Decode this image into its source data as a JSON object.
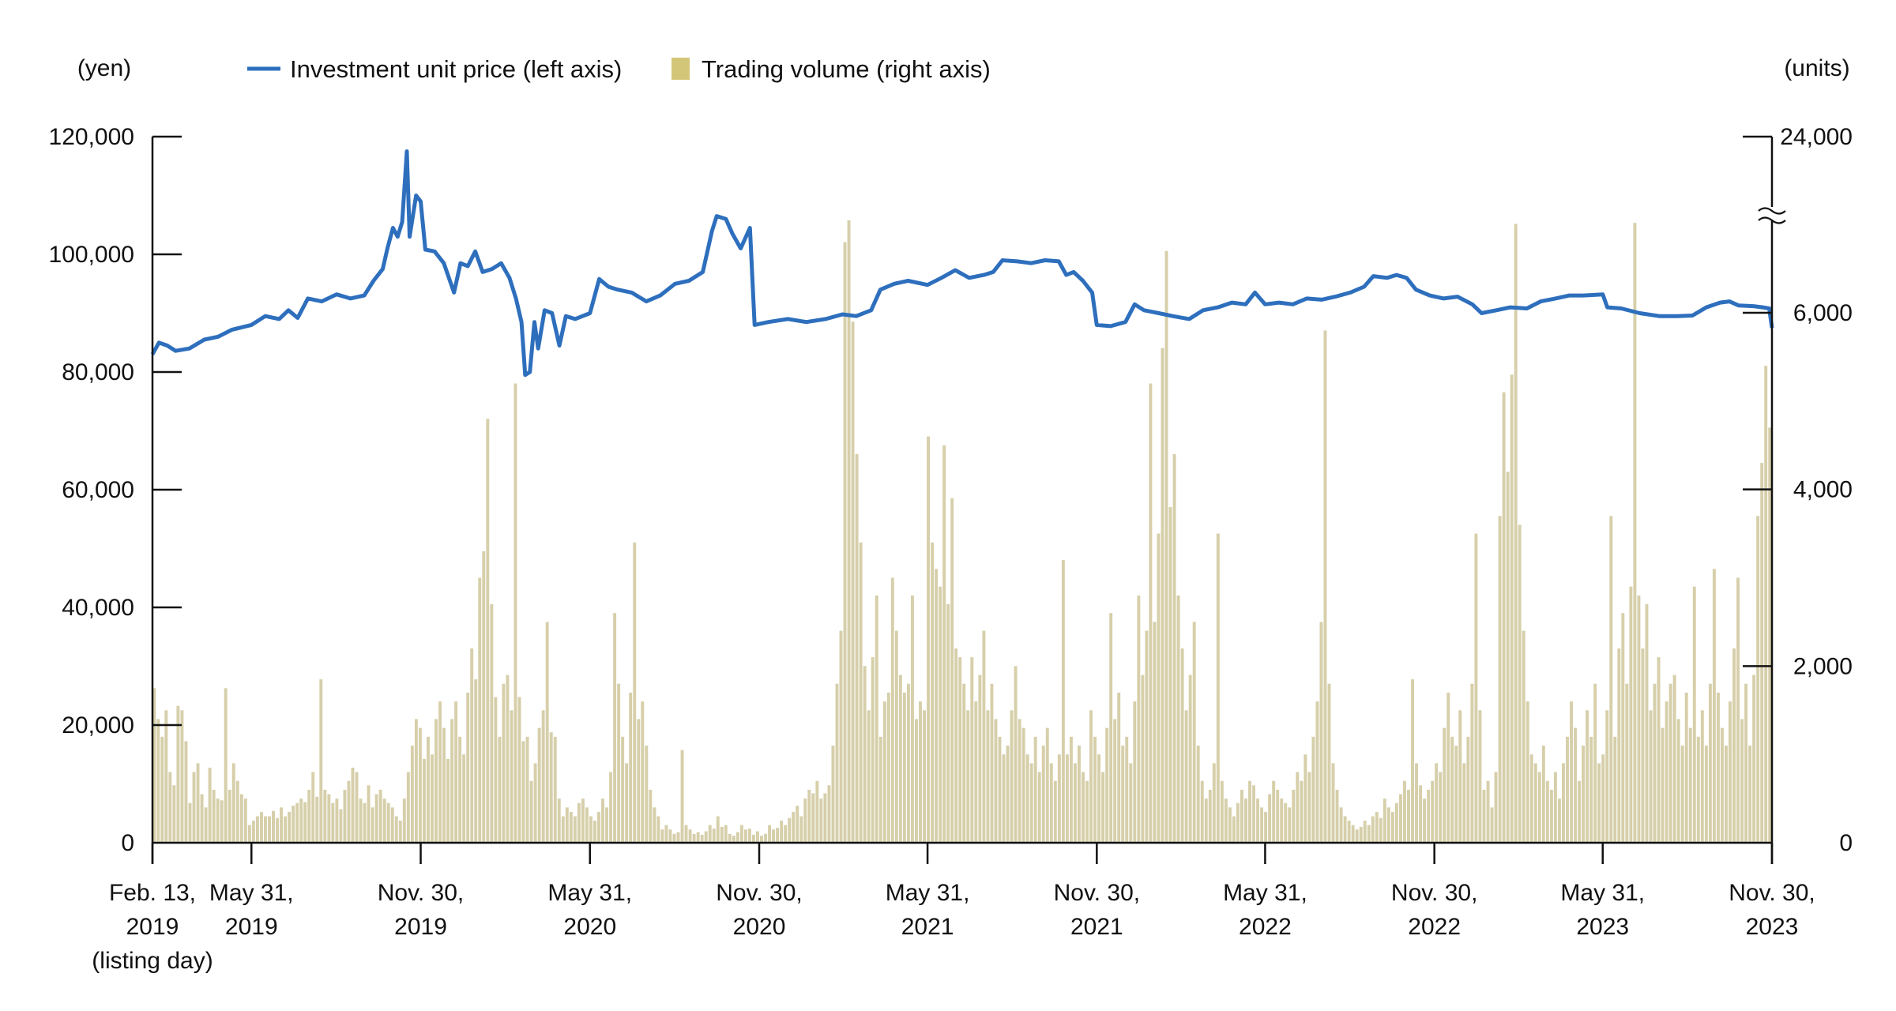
{
  "chart_data": {
    "type": "bar+line",
    "title": "",
    "left_axis": {
      "unit_label": "(yen)",
      "ylim": [
        0,
        120000
      ],
      "ticks": [
        0,
        20000,
        40000,
        60000,
        80000,
        100000,
        120000
      ],
      "tick_labels": [
        "0",
        "20,000",
        "40,000",
        "60,000",
        "80,000",
        "100,000",
        "120,000"
      ]
    },
    "right_axis": {
      "unit_label": "(units)",
      "ylim_lower": [
        0,
        6800
      ],
      "break": true,
      "top_value": 24000,
      "ticks": [
        0,
        2000,
        4000,
        6000,
        24000
      ],
      "tick_labels": [
        "0",
        "2,000",
        "4,000",
        "6,000",
        "24,000"
      ]
    },
    "x_axis": {
      "start": "2019-02-13",
      "end": "2023-11-30",
      "ticks": [
        {
          "date": "2019-02-13",
          "line1": "Feb. 13,",
          "line2": "2019",
          "line3": "(listing day)"
        },
        {
          "date": "2019-05-31",
          "line1": "May 31,",
          "line2": "2019"
        },
        {
          "date": "2019-11-30",
          "line1": "Nov. 30,",
          "line2": "2019"
        },
        {
          "date": "2020-05-31",
          "line1": "May 31,",
          "line2": "2020"
        },
        {
          "date": "2020-11-30",
          "line1": "Nov. 30,",
          "line2": "2020"
        },
        {
          "date": "2021-05-31",
          "line1": "May 31,",
          "line2": "2021"
        },
        {
          "date": "2021-11-30",
          "line1": "Nov. 30,",
          "line2": "2021"
        },
        {
          "date": "2022-05-31",
          "line1": "May 31,",
          "line2": "2022"
        },
        {
          "date": "2022-11-30",
          "line1": "Nov. 30,",
          "line2": "2022"
        },
        {
          "date": "2023-05-31",
          "line1": "May 31,",
          "line2": "2023"
        },
        {
          "date": "2023-11-30",
          "line1": "Nov. 30,",
          "line2": "2023"
        }
      ]
    },
    "legend": {
      "placement": "top",
      "items": [
        {
          "label": "Investment unit price (left axis)",
          "kind": "line",
          "color": "#2e6fbd"
        },
        {
          "label": "Trading volume (right axis)",
          "kind": "bar",
          "color": "#d4c678"
        }
      ]
    },
    "series": [
      {
        "name": "Investment unit price (left axis)",
        "type": "line",
        "color": "#2e6fbd",
        "points": [
          [
            "2019-02-13",
            83000
          ],
          [
            "2019-02-20",
            85000
          ],
          [
            "2019-03-01",
            84500
          ],
          [
            "2019-03-10",
            83600
          ],
          [
            "2019-03-25",
            84000
          ],
          [
            "2019-04-10",
            85500
          ],
          [
            "2019-04-25",
            86000
          ],
          [
            "2019-05-10",
            87200
          ],
          [
            "2019-05-31",
            88000
          ],
          [
            "2019-06-15",
            89500
          ],
          [
            "2019-06-30",
            89000
          ],
          [
            "2019-07-10",
            90500
          ],
          [
            "2019-07-20",
            89200
          ],
          [
            "2019-07-31",
            92500
          ],
          [
            "2019-08-15",
            92000
          ],
          [
            "2019-08-31",
            93200
          ],
          [
            "2019-09-15",
            92500
          ],
          [
            "2019-09-30",
            93000
          ],
          [
            "2019-10-10",
            95500
          ],
          [
            "2019-10-20",
            97500
          ],
          [
            "2019-10-25",
            101000
          ],
          [
            "2019-10-31",
            104500
          ],
          [
            "2019-11-05",
            103000
          ],
          [
            "2019-11-10",
            105500
          ],
          [
            "2019-11-15",
            117500
          ],
          [
            "2019-11-18",
            103000
          ],
          [
            "2019-11-22",
            107000
          ],
          [
            "2019-11-25",
            110000
          ],
          [
            "2019-11-30",
            109000
          ],
          [
            "2019-12-05",
            100800
          ],
          [
            "2019-12-15",
            100500
          ],
          [
            "2019-12-25",
            98500
          ],
          [
            "2020-01-05",
            93500
          ],
          [
            "2020-01-12",
            98500
          ],
          [
            "2020-01-20",
            98000
          ],
          [
            "2020-01-28",
            100500
          ],
          [
            "2020-02-05",
            97000
          ],
          [
            "2020-02-15",
            97500
          ],
          [
            "2020-02-25",
            98500
          ],
          [
            "2020-03-05",
            96000
          ],
          [
            "2020-03-12",
            92500
          ],
          [
            "2020-03-18",
            88500
          ],
          [
            "2020-03-22",
            79500
          ],
          [
            "2020-03-27",
            80000
          ],
          [
            "2020-04-01",
            88500
          ],
          [
            "2020-04-05",
            84000
          ],
          [
            "2020-04-12",
            90500
          ],
          [
            "2020-04-20",
            90000
          ],
          [
            "2020-04-28",
            84500
          ],
          [
            "2020-05-05",
            89500
          ],
          [
            "2020-05-15",
            89000
          ],
          [
            "2020-05-31",
            90000
          ],
          [
            "2020-06-10",
            95800
          ],
          [
            "2020-06-20",
            94500
          ],
          [
            "2020-06-30",
            94000
          ],
          [
            "2020-07-15",
            93500
          ],
          [
            "2020-07-31",
            92000
          ],
          [
            "2020-08-15",
            93000
          ],
          [
            "2020-08-31",
            95000
          ],
          [
            "2020-09-15",
            95500
          ],
          [
            "2020-09-30",
            97000
          ],
          [
            "2020-10-10",
            104000
          ],
          [
            "2020-10-15",
            106500
          ],
          [
            "2020-10-25",
            106000
          ],
          [
            "2020-11-01",
            103500
          ],
          [
            "2020-11-10",
            101000
          ],
          [
            "2020-11-20",
            104500
          ],
          [
            "2020-11-25",
            88000
          ],
          [
            "2020-12-10",
            88500
          ],
          [
            "2020-12-31",
            89000
          ],
          [
            "2021-01-20",
            88500
          ],
          [
            "2021-02-10",
            89000
          ],
          [
            "2021-02-28",
            89800
          ],
          [
            "2021-03-15",
            89500
          ],
          [
            "2021-03-31",
            90500
          ],
          [
            "2021-04-10",
            94000
          ],
          [
            "2021-04-25",
            95000
          ],
          [
            "2021-05-10",
            95500
          ],
          [
            "2021-05-31",
            94800
          ],
          [
            "2021-06-15",
            96000
          ],
          [
            "2021-06-30",
            97300
          ],
          [
            "2021-07-15",
            96000
          ],
          [
            "2021-07-31",
            96500
          ],
          [
            "2021-08-10",
            97000
          ],
          [
            "2021-08-20",
            99000
          ],
          [
            "2021-09-05",
            98800
          ],
          [
            "2021-09-20",
            98500
          ],
          [
            "2021-10-05",
            99000
          ],
          [
            "2021-10-20",
            98800
          ],
          [
            "2021-10-28",
            96500
          ],
          [
            "2021-11-05",
            97000
          ],
          [
            "2021-11-15",
            95500
          ],
          [
            "2021-11-25",
            93500
          ],
          [
            "2021-11-30",
            88000
          ],
          [
            "2021-12-15",
            87800
          ],
          [
            "2021-12-31",
            88500
          ],
          [
            "2022-01-10",
            91500
          ],
          [
            "2022-01-20",
            90500
          ],
          [
            "2022-02-05",
            90000
          ],
          [
            "2022-02-20",
            89500
          ],
          [
            "2022-03-10",
            89000
          ],
          [
            "2022-03-25",
            90500
          ],
          [
            "2022-04-10",
            91000
          ],
          [
            "2022-04-25",
            91800
          ],
          [
            "2022-05-10",
            91500
          ],
          [
            "2022-05-20",
            93500
          ],
          [
            "2022-05-31",
            91500
          ],
          [
            "2022-06-15",
            91800
          ],
          [
            "2022-06-30",
            91500
          ],
          [
            "2022-07-15",
            92500
          ],
          [
            "2022-07-31",
            92300
          ],
          [
            "2022-08-15",
            92800
          ],
          [
            "2022-08-31",
            93500
          ],
          [
            "2022-09-15",
            94500
          ],
          [
            "2022-09-25",
            96300
          ],
          [
            "2022-10-10",
            96000
          ],
          [
            "2022-10-20",
            96500
          ],
          [
            "2022-10-31",
            96000
          ],
          [
            "2022-11-10",
            94000
          ],
          [
            "2022-11-25",
            93000
          ],
          [
            "2022-12-10",
            92500
          ],
          [
            "2022-12-25",
            92800
          ],
          [
            "2023-01-10",
            91500
          ],
          [
            "2023-01-20",
            90000
          ],
          [
            "2023-02-05",
            90500
          ],
          [
            "2023-02-20",
            91000
          ],
          [
            "2023-03-10",
            90800
          ],
          [
            "2023-03-25",
            92000
          ],
          [
            "2023-04-10",
            92500
          ],
          [
            "2023-04-25",
            93000
          ],
          [
            "2023-05-10",
            93000
          ],
          [
            "2023-05-31",
            93200
          ],
          [
            "2023-06-05",
            91000
          ],
          [
            "2023-06-20",
            90800
          ],
          [
            "2023-07-10",
            90000
          ],
          [
            "2023-07-31",
            89500
          ],
          [
            "2023-08-20",
            89500
          ],
          [
            "2023-09-05",
            89600
          ],
          [
            "2023-09-20",
            91000
          ],
          [
            "2023-10-05",
            91800
          ],
          [
            "2023-10-15",
            92000
          ],
          [
            "2023-10-25",
            91300
          ],
          [
            "2023-11-10",
            91200
          ],
          [
            "2023-11-20",
            91000
          ],
          [
            "2023-11-27",
            90800
          ],
          [
            "2023-11-30",
            87500
          ]
        ]
      },
      {
        "name": "Trading volume (right axis)",
        "type": "bar",
        "color": "#d6cfaa",
        "sampling": "approximately every 3 trading days",
        "values": [
          1750,
          1400,
          1200,
          1500,
          800,
          650,
          1550,
          1500,
          1150,
          450,
          800,
          900,
          550,
          400,
          850,
          600,
          500,
          480,
          1750,
          600,
          900,
          700,
          550,
          500,
          200,
          250,
          300,
          350,
          300,
          300,
          360,
          280,
          400,
          300,
          350,
          420,
          450,
          500,
          460,
          600,
          800,
          520,
          1850,
          600,
          550,
          450,
          500,
          380,
          600,
          700,
          850,
          800,
          500,
          450,
          650,
          400,
          550,
          600,
          500,
          450,
          400,
          300,
          250,
          500,
          800,
          1100,
          1400,
          1300,
          950,
          1200,
          1000,
          1400,
          1600,
          1300,
          950,
          1400,
          1600,
          1200,
          1000,
          1700,
          2200,
          1850,
          3000,
          3300,
          4800,
          2700,
          1650,
          1200,
          1800,
          1900,
          1500,
          5200,
          1650,
          1150,
          1200,
          700,
          900,
          1300,
          1500,
          2500,
          1250,
          1200,
          500,
          300,
          400,
          350,
          300,
          450,
          500,
          400,
          300,
          250,
          350,
          500,
          400,
          800,
          2600,
          1800,
          1200,
          900,
          1700,
          3400,
          1400,
          1600,
          1100,
          600,
          400,
          300,
          150,
          200,
          150,
          100,
          120,
          1050,
          200,
          150,
          100,
          120,
          90,
          130,
          200,
          160,
          300,
          180,
          200,
          100,
          80,
          120,
          200,
          150,
          160,
          90,
          130,
          80,
          100,
          200,
          150,
          170,
          250,
          200,
          280,
          350,
          420,
          300,
          500,
          600,
          560,
          700,
          500,
          560,
          650,
          1100,
          1800,
          2400,
          6800,
          7800,
          5900,
          4400,
          3400,
          2000,
          1500,
          2100,
          2800,
          1200,
          1600,
          1700,
          3000,
          2400,
          1900,
          1700,
          1800,
          2800,
          1400,
          1600,
          1500,
          4600,
          3400,
          3100,
          2900,
          4500,
          2700,
          3900,
          2200,
          2100,
          1800,
          1500,
          2100,
          1600,
          1900,
          2400,
          1500,
          1800,
          1400,
          1200,
          1000,
          1100,
          1500,
          2000,
          1400,
          1300,
          1000,
          900,
          1200,
          800,
          1100,
          1300,
          900,
          700,
          1000,
          3200,
          1000,
          1200,
          900,
          1100,
          800,
          700,
          1500,
          1200,
          1000,
          800,
          1300,
          2600,
          1400,
          1700,
          1100,
          1200,
          900,
          1600,
          2800,
          1900,
          2400,
          5200,
          2500,
          3500,
          5600,
          6700,
          3800,
          4400,
          2800,
          2200,
          1500,
          1900,
          2500,
          1100,
          700,
          500,
          600,
          900,
          3500,
          700,
          500,
          400,
          300,
          450,
          600,
          500,
          700,
          650,
          500,
          400,
          350,
          550,
          700,
          600,
          500,
          450,
          400,
          600,
          800,
          700,
          1000,
          800,
          1200,
          1600,
          2500,
          5800,
          1800,
          900,
          600,
          400,
          300,
          250,
          200,
          150,
          180,
          250,
          200,
          300,
          350,
          280,
          500,
          400,
          350,
          450,
          550,
          700,
          600,
          1850,
          900,
          650,
          500,
          600,
          700,
          900,
          800,
          1300,
          1700,
          1200,
          1100,
          1500,
          900,
          1200,
          1800,
          3500,
          1500,
          600,
          700,
          400,
          800,
          3700,
          5100,
          4200,
          5300,
          7100,
          3600,
          2400,
          1600,
          1000,
          900,
          800,
          1100,
          700,
          600,
          800,
          500,
          900,
          1200,
          1600,
          1300,
          700,
          1100,
          1500,
          1200,
          1800,
          900,
          1000,
          1500,
          3700,
          1200,
          2200,
          2600,
          1800,
          2900,
          7300,
          2800,
          2200,
          2700,
          1500,
          1800,
          2100,
          1300,
          1600,
          1800,
          1900,
          1400,
          1100,
          1700,
          1300,
          2900,
          1200,
          1500,
          1100,
          1800,
          3100,
          1700,
          1300,
          1100,
          1600,
          2200,
          3000,
          1400,
          1800,
          1100,
          1900,
          3700,
          4300,
          5400,
          4700
        ]
      }
    ]
  }
}
